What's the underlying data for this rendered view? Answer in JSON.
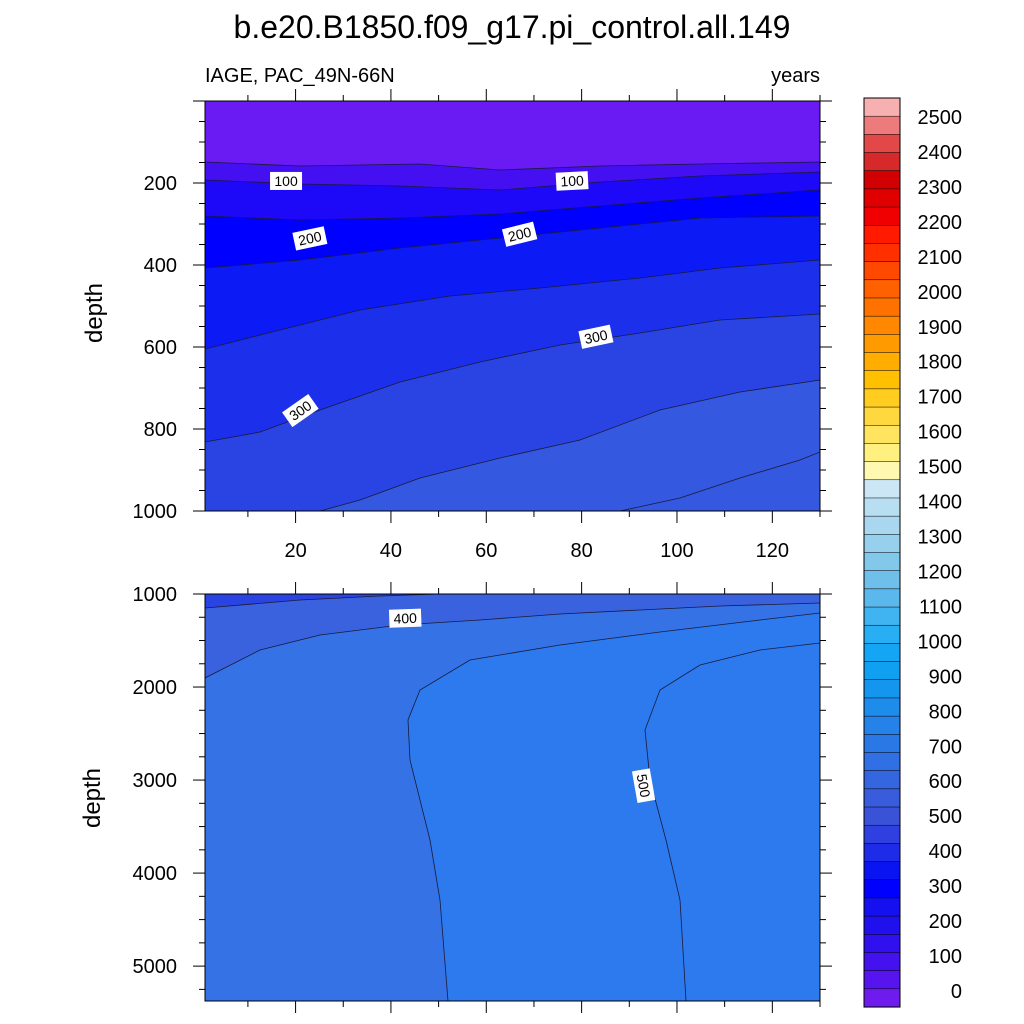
{
  "chart_data": {
    "type": "filled-contour",
    "title": "b.e20.B1850.f09_g17.pi_control.all.149",
    "left_label": "IAGE, PAC_49N-66N",
    "right_label": "years",
    "xlabel": "",
    "ylabel": "depth",
    "x_range": [
      1,
      130
    ],
    "x_ticks": [
      20,
      40,
      60,
      80,
      100,
      120
    ],
    "x_tick_labels": [
      "20",
      "40",
      "60",
      "80",
      "100",
      "120"
    ],
    "panels": [
      {
        "name": "upper",
        "y_range": [
          0,
          1000
        ],
        "y_ticks": [
          200,
          400,
          600,
          800,
          1000
        ],
        "y_tick_labels": [
          "200",
          "400",
          "600",
          "800",
          "1000"
        ],
        "contour_labels": [
          {
            "text": "100",
            "x": 18,
            "depth": 195
          },
          {
            "text": "100",
            "x": 78,
            "depth": 195
          },
          {
            "text": "200",
            "x": 23,
            "depth": 335
          },
          {
            "text": "200",
            "x": 67,
            "depth": 325
          },
          {
            "text": "300",
            "x": 83,
            "depth": 575
          },
          {
            "text": "300",
            "x": 21,
            "depth": 755
          }
        ]
      },
      {
        "name": "lower",
        "y_range": [
          1000,
          5375
        ],
        "y_ticks": [
          1000,
          2000,
          3000,
          4000,
          5000
        ],
        "y_tick_labels": [
          "1000",
          "2000",
          "3000",
          "4000",
          "5000"
        ],
        "contour_labels": [
          {
            "text": "400",
            "x": 43,
            "depth": 1260
          },
          {
            "text": "500",
            "x": 93,
            "depth": 3060
          }
        ]
      }
    ],
    "colorbar": {
      "labels": [
        "2500",
        "2400",
        "2300",
        "2200",
        "2100",
        "2000",
        "1900",
        "1800",
        "1700",
        "1600",
        "1500",
        "1400",
        "1300",
        "1200",
        "1100",
        "1000",
        "900",
        "800",
        "700",
        "600",
        "500",
        "400",
        "300",
        "200",
        "100",
        "0"
      ],
      "colors": [
        "#f7b0b0",
        "#ee7b7b",
        "#e24848",
        "#d62a2a",
        "#d20000",
        "#e00000",
        "#f00000",
        "#ff1a00",
        "#ff3000",
        "#ff4800",
        "#ff6000",
        "#ff7200",
        "#ff8800",
        "#ff9a00",
        "#ffae00",
        "#ffc000",
        "#ffcc20",
        "#ffd840",
        "#ffe460",
        "#fff080",
        "#fff8b0",
        "#cde6f6",
        "#b8def2",
        "#a8d7ef",
        "#96d0ec",
        "#82c8ea",
        "#6ec0ea",
        "#5ab8ec",
        "#40b4f0",
        "#28aef2",
        "#14a6f4",
        "#10a0f2",
        "#1496ee",
        "#1e8cea",
        "#2482e8",
        "#2a78e6",
        "#3070e4",
        "#3466e0",
        "#385cdc",
        "#3a52d8",
        "#3040e0",
        "#1e2ce8",
        "#0a14f2",
        "#0000ff",
        "#1410f0",
        "#2010ee",
        "#3010ee",
        "#4412ee",
        "#5614ee",
        "#6e1cee"
      ]
    },
    "fill_levels_upper": [
      {
        "value": "<100",
        "color": "#6a1af2"
      },
      {
        "value": "100-150",
        "color": "#4410f2"
      },
      {
        "value": "150-200",
        "color": "#1e08f8"
      },
      {
        "value": "200-250",
        "color": "#0000ff"
      },
      {
        "value": "250-300",
        "color": "#0c1af6"
      },
      {
        "value": "300-350",
        "color": "#1c30ec"
      },
      {
        "value": "350-400",
        "color": "#2a44e4"
      },
      {
        "value": "400-450",
        "color": "#3458e0"
      }
    ],
    "fill_levels_lower": [
      {
        "value": "350-400",
        "color": "#2a44e4"
      },
      {
        "value": "400-450",
        "color": "#3a62de"
      },
      {
        "value": "450-500",
        "color": "#3472e6"
      },
      {
        "value": "500-550",
        "color": "#2c7aee"
      }
    ]
  }
}
